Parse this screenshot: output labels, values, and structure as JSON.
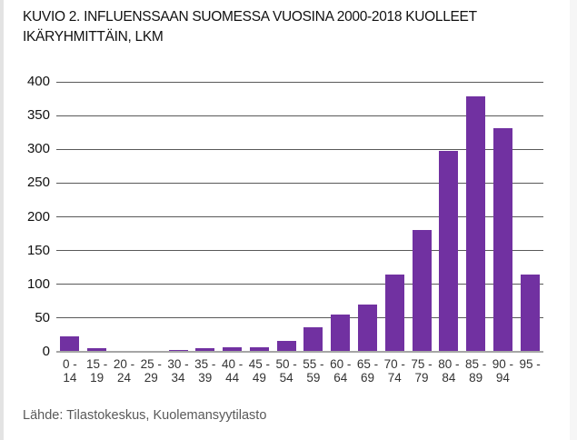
{
  "page": {
    "background": "#ffffff",
    "left_strip_color": "#e3e3e3",
    "right_strip_color": "#f6f6f6"
  },
  "header": {
    "title_line1": "KUVIO 2. INFLUENSSAAN SUOMESSA VUOSINA 2000-2018 KUOLLEET",
    "title_line2": "IKÄRYHMITTÄIN, LKM"
  },
  "footer": {
    "source_text": "Lähde: Tilastokeskus, Kuolemansyytilasto"
  },
  "chart_data": {
    "type": "bar",
    "title": "KUVIO 2. INFLUENSSAAN SUOMESSA VUOSINA 2000-2018 KUOLLEET IKÄRYHMITTÄIN, LKM",
    "categories": [
      "0-14",
      "15-19",
      "20-24",
      "25-29",
      "30-34",
      "35-39",
      "40-44",
      "45-49",
      "50-54",
      "55-59",
      "60-64",
      "65-69",
      "70-74",
      "75-79",
      "80-84",
      "85-89",
      "90-94",
      "95-"
    ],
    "tick_labels": [
      [
        "0 -",
        "14"
      ],
      [
        "15 -",
        "19"
      ],
      [
        "20 -",
        "24"
      ],
      [
        "25 -",
        "29"
      ],
      [
        "30 -",
        "34"
      ],
      [
        "35 -",
        "39"
      ],
      [
        "40 -",
        "44"
      ],
      [
        "45 -",
        "49"
      ],
      [
        "50 -",
        "54"
      ],
      [
        "55 -",
        "59"
      ],
      [
        "60 -",
        "64"
      ],
      [
        "65 -",
        "69"
      ],
      [
        "70 -",
        "74"
      ],
      [
        "75 -",
        "79"
      ],
      [
        "80 -",
        "84"
      ],
      [
        "85 -",
        "89"
      ],
      [
        "90 -",
        "94"
      ],
      [
        "95 -"
      ]
    ],
    "values": [
      23,
      6,
      1,
      2,
      3,
      6,
      7,
      7,
      16,
      37,
      55,
      70,
      114,
      181,
      297,
      379,
      331,
      114
    ],
    "xlabel": "",
    "ylabel": "",
    "ylim": [
      0,
      400
    ],
    "yticks": [
      0,
      50,
      100,
      150,
      200,
      250,
      300,
      350,
      400
    ],
    "grid": true,
    "legend_position": "none",
    "bar_color": "#7131a1",
    "gridline_color": "#595959",
    "baseline_color": "#a6a6a6"
  }
}
